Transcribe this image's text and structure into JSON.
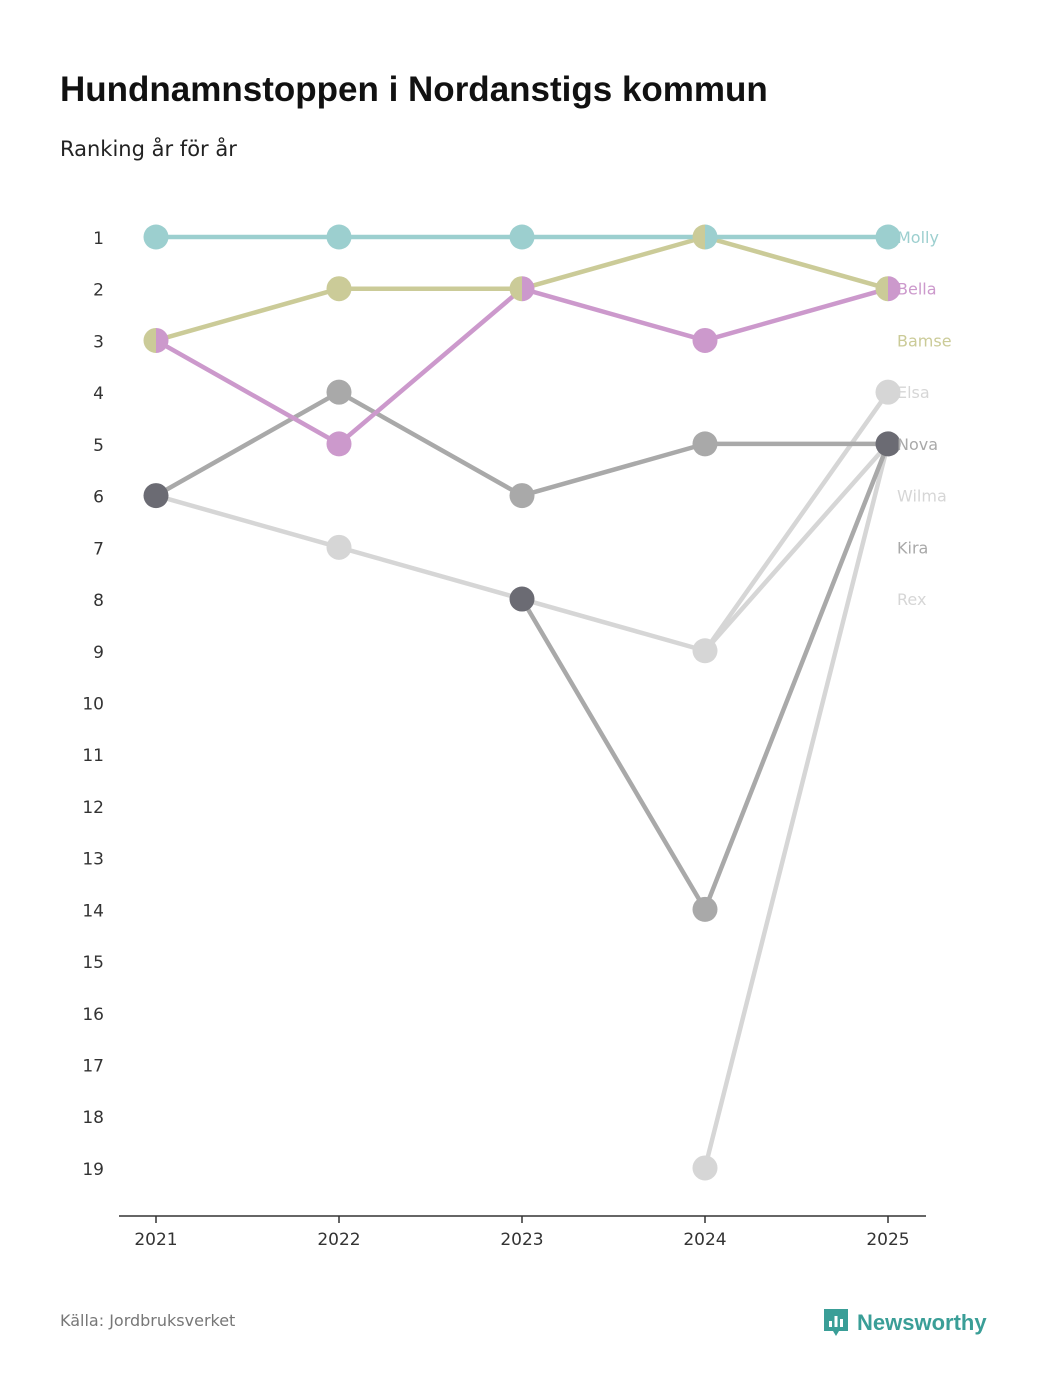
{
  "title": "Hundnamnstoppen i Nordanstigs kommun",
  "subtitle": "Ranking år för år",
  "source": "Källa: Jordbruksverket",
  "brand": {
    "name": "Newsworthy",
    "color": "#3a9e97",
    "icon": "newsworthy-chart-logo-icon"
  },
  "chart_data": {
    "type": "line",
    "variant": "bump",
    "x": [
      "2021",
      "2022",
      "2023",
      "2024",
      "2025"
    ],
    "y_ticks": [
      1,
      2,
      3,
      4,
      5,
      6,
      7,
      8,
      9,
      10,
      11,
      12,
      13,
      14,
      15,
      16,
      17,
      18,
      19
    ],
    "y_reversed": true,
    "ylim": [
      1,
      19
    ],
    "grid": false,
    "legend": "right-end labels",
    "series": [
      {
        "name": "Rex",
        "color": "#d6d6d6",
        "values": [
          null,
          null,
          null,
          19,
          5
        ]
      },
      {
        "name": "Kira",
        "color": "#a9a9a9",
        "values": [
          null,
          null,
          8,
          14,
          5
        ]
      },
      {
        "name": "Wilma",
        "color": "#d6d6d6",
        "values": [
          6,
          7,
          8,
          9,
          5
        ]
      },
      {
        "name": "Elsa",
        "color": "#d6d6d6",
        "values": [
          null,
          null,
          null,
          9,
          4
        ]
      },
      {
        "name": "Nova",
        "color": "#a9a9a9",
        "values": [
          6,
          4,
          6,
          5,
          5
        ]
      },
      {
        "name": "Bamse",
        "color": "#cbcb98",
        "values": [
          3,
          2,
          2,
          1,
          2
        ]
      },
      {
        "name": "Bella",
        "color": "#cc99cc",
        "values": [
          3,
          5,
          2,
          3,
          2
        ]
      },
      {
        "name": "Molly",
        "color": "#9ccfcf",
        "values": [
          1,
          1,
          1,
          1,
          1
        ]
      }
    ],
    "shared_marker_color": "#6b6b73"
  }
}
